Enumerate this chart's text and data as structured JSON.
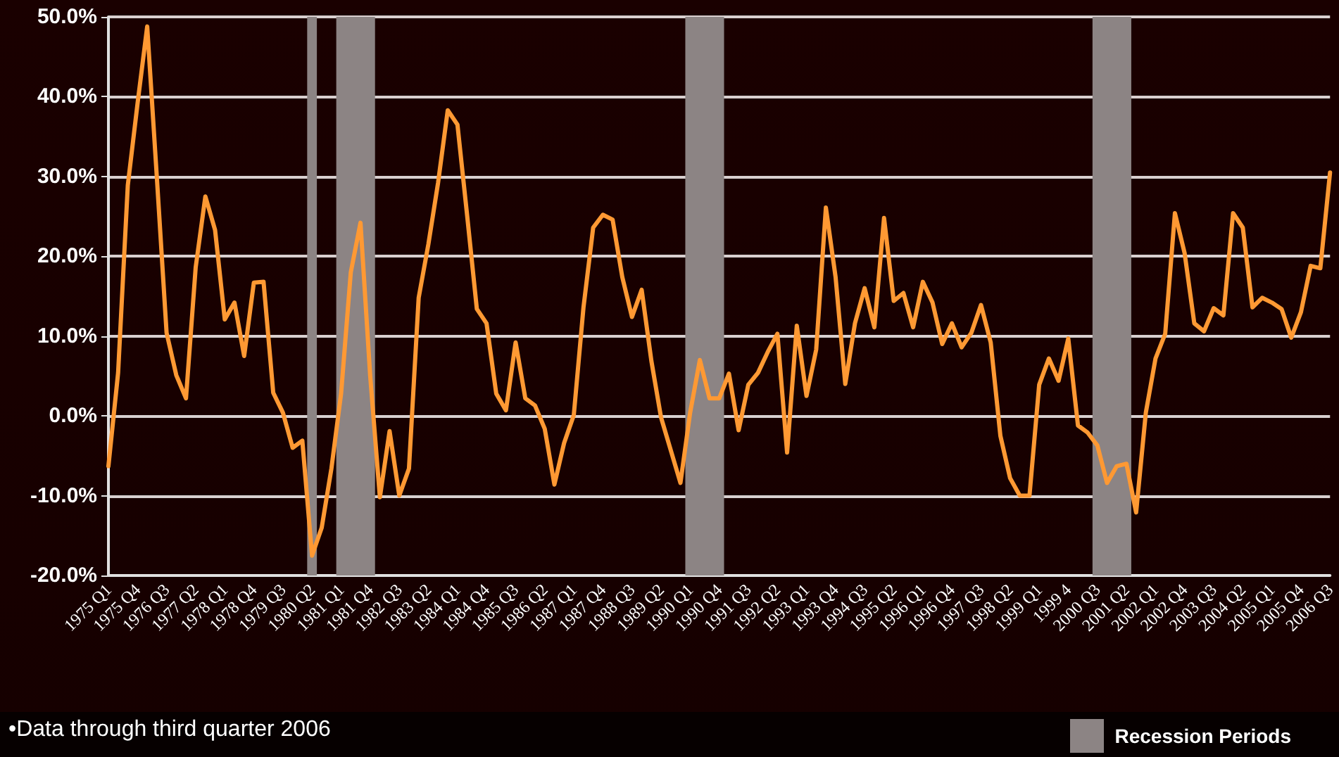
{
  "chart_data": {
    "type": "line",
    "categories": [
      "1975 Q1",
      null,
      null,
      "1975 Q4",
      null,
      null,
      "1976 Q3",
      null,
      null,
      "1977 Q2",
      null,
      null,
      "1978 Q1",
      null,
      null,
      "1978 Q4",
      null,
      null,
      "1979 Q3",
      null,
      null,
      "1980 Q2",
      null,
      null,
      "1981 Q1",
      null,
      null,
      "1981 Q4",
      null,
      null,
      "1982 Q3",
      null,
      null,
      "1983 Q2",
      null,
      null,
      "1984 Q1",
      null,
      null,
      "1984 Q4",
      null,
      null,
      "1985 Q3",
      null,
      null,
      "1986 Q2",
      null,
      null,
      "1987 Q1",
      null,
      null,
      "1987 Q4",
      null,
      null,
      "1988 Q3",
      null,
      null,
      "1989 Q2",
      null,
      null,
      "1990 Q1",
      null,
      null,
      "1990 Q4",
      null,
      null,
      "1991 Q3",
      null,
      null,
      "1992 Q2",
      null,
      null,
      "1993 Q1",
      null,
      null,
      "1993 Q4",
      null,
      null,
      "1994 Q3",
      null,
      null,
      "1995 Q2",
      null,
      null,
      "1996 Q1",
      null,
      null,
      "1996 Q4",
      null,
      null,
      "1997 Q3",
      null,
      null,
      "1998 Q2",
      null,
      null,
      "1999 Q1",
      null,
      null,
      "1999 4",
      null,
      null,
      "2000 Q3",
      null,
      null,
      "2001 Q2",
      null,
      null,
      "2002 Q1",
      null,
      null,
      "2002 Q4",
      null,
      null,
      "2003 Q3",
      null,
      null,
      "2004 Q2",
      null,
      null,
      "2005 Q1",
      null,
      null,
      "2005 Q4",
      null,
      null,
      "2006 Q3"
    ],
    "series": [
      {
        "color": "#ff9933",
        "values": [
          -6.3,
          5.4,
          28.9,
          39.1,
          48.8,
          29.8,
          10.4,
          5.1,
          2.2,
          18.6,
          27.5,
          23.3,
          12.1,
          14.2,
          7.5,
          16.7,
          16.8,
          2.9,
          0.4,
          -4.0,
          -3.1,
          -17.5,
          -14.0,
          -6.6,
          2.8,
          18.0,
          24.2,
          5.0,
          -10.2,
          -1.9,
          -10.0,
          -6.6,
          14.8,
          21.5,
          29.2,
          38.3,
          36.5,
          25.1,
          13.4,
          11.6,
          2.8,
          0.7,
          9.2,
          2.2,
          1.3,
          -1.6,
          -8.6,
          -3.4,
          0.1,
          13.6,
          23.6,
          25.2,
          24.6,
          17.4,
          12.4,
          15.8,
          6.9,
          -0.2,
          -4.3,
          -8.4,
          0.4,
          7.0,
          2.2,
          2.2,
          5.3,
          -1.8,
          3.9,
          5.4,
          8.0,
          10.3,
          -4.6,
          11.3,
          2.5,
          8.3,
          26.1,
          17.4,
          4.0,
          11.6,
          16.0,
          11.1,
          24.8,
          14.4,
          15.4,
          11.1,
          16.8,
          14.2,
          9.0,
          11.6,
          8.6,
          10.4,
          13.9,
          9.2,
          -2.5,
          -7.8,
          -10.0,
          -10.0,
          3.9,
          7.2,
          4.4,
          9.7,
          -1.2,
          -2.1,
          -3.7,
          -8.4,
          -6.3,
          -6.0,
          -12.1,
          0.4,
          7.2,
          10.3,
          25.4,
          20.4,
          11.6,
          10.6,
          13.5,
          12.6,
          25.4,
          23.6,
          13.6,
          14.8,
          14.2,
          13.4,
          9.8,
          13.0,
          18.8,
          18.5,
          30.5
        ]
      }
    ],
    "ylim": [
      -20,
      50
    ],
    "yticks": [
      {
        "value": -20,
        "label": "-20.0%"
      },
      {
        "value": -10,
        "label": "-10.0%"
      },
      {
        "value": 0,
        "label": "0.0%"
      },
      {
        "value": 10,
        "label": "10.0%"
      },
      {
        "value": 20,
        "label": "20.0%"
      },
      {
        "value": 30,
        "label": "30.0%"
      },
      {
        "value": 40,
        "label": "40.0%"
      },
      {
        "value": 50,
        "label": "50.0%"
      }
    ],
    "grid": "y",
    "marker": "none",
    "line_style": "solid",
    "bands": [
      {
        "axis": "x",
        "from": "1980 Q2",
        "to": "1980 Q2",
        "label": "Recession Periods",
        "color": "#8c8484"
      },
      {
        "axis": "x",
        "from": "1981 Q1",
        "to": "1981 Q4",
        "color": "#8c8484"
      },
      {
        "axis": "x",
        "from": "1990 Q1",
        "to": "1990 Q4",
        "color": "#8c8484"
      },
      {
        "axis": "x",
        "from": "2000 Q3",
        "to": "2001 Q2",
        "color": "#8c8484"
      }
    ],
    "legend": "bottom right",
    "annotations": [
      "•Data through third quarter 2006"
    ]
  }
}
